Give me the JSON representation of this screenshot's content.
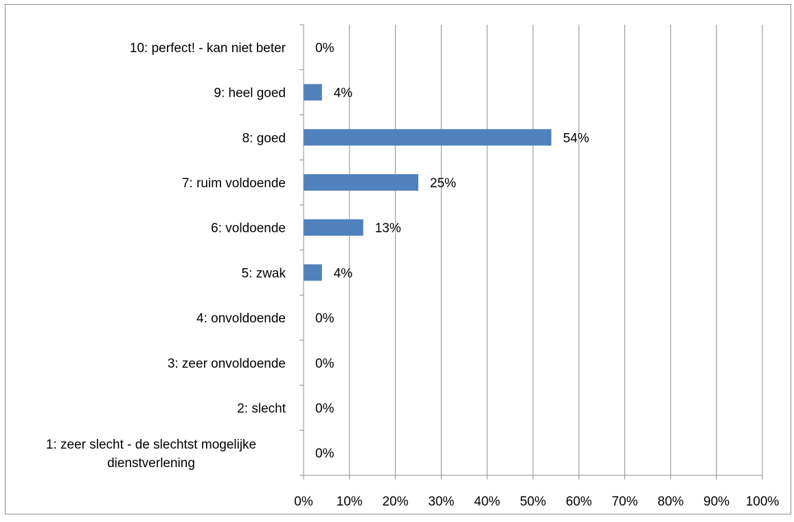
{
  "chart_data": {
    "type": "bar",
    "orientation": "horizontal",
    "title": "",
    "xlabel": "",
    "ylabel": "",
    "categories": [
      "1: zeer slecht - de slechtst mogelijke dienstverlening",
      "2: slecht",
      "3: zeer onvoldoende",
      "4: onvoldoende",
      "5: zwak",
      "6: voldoende",
      "7: ruim voldoende",
      "8: goed",
      "9: heel goed",
      "10: perfect! - kan niet beter"
    ],
    "values": [
      0,
      0,
      0,
      0,
      4,
      13,
      25,
      54,
      4,
      0
    ],
    "data_labels": [
      "0%",
      "0%",
      "0%",
      "0%",
      "4%",
      "13%",
      "25%",
      "54%",
      "4%",
      "0%"
    ],
    "xlim": [
      0,
      100
    ],
    "x_ticks": [
      "0%",
      "10%",
      "20%",
      "30%",
      "40%",
      "50%",
      "60%",
      "70%",
      "80%",
      "90%",
      "100%"
    ],
    "grid": "vertical",
    "legend": "none",
    "bar_color": "#4f81bd"
  }
}
